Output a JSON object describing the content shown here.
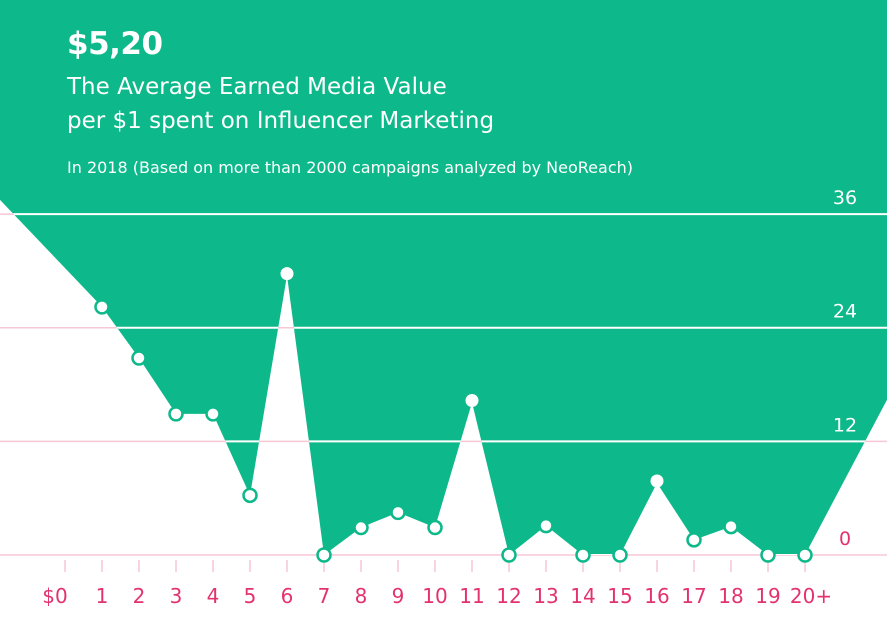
{
  "headline": "$5,20",
  "title_line1": "The Average Earned Media Value",
  "title_line2": "per $1 spent on Influencer Marketing",
  "subtitle": "In 2018 (Based on more than 2000 campaigns analyzed by NeoReach)",
  "colors": {
    "fill": "#0db98a",
    "axis_labels": "#e3336e",
    "grid_on_white": "#f6c7d5",
    "grid_on_fill": "#ffffff"
  },
  "chart_data": {
    "type": "area",
    "title": "The Average Earned Media Value per $1 spent on Influencer Marketing",
    "categories": [
      "$0",
      "1",
      "2",
      "3",
      "4",
      "5",
      "6",
      "7",
      "8",
      "9",
      "10",
      "11",
      "12",
      "13",
      "14",
      "15",
      "16",
      "17",
      "18",
      "19",
      "20+"
    ],
    "series": [
      {
        "values": [
          null,
          26.2,
          20.8,
          14.9,
          14.9,
          6.3,
          29.5,
          0,
          2.9,
          4.5,
          2.9,
          16.1,
          0,
          3.1,
          0,
          0,
          7.6,
          1.6,
          3.0,
          0,
          0
        ]
      }
    ],
    "peaks": [
      "6",
      "11",
      "16"
    ],
    "yticks": [
      "0",
      "12",
      "24",
      "36"
    ],
    "ylim": [
      0,
      36
    ],
    "grid": true
  }
}
